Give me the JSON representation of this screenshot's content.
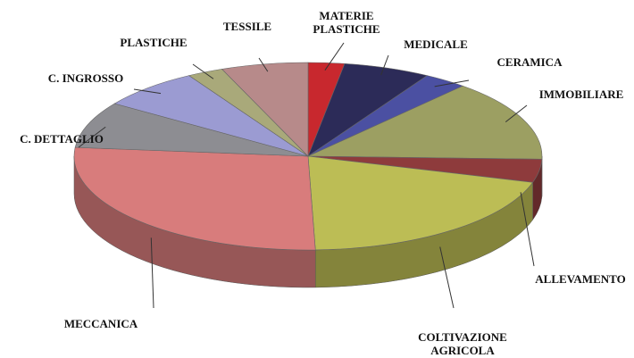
{
  "chart_data": {
    "type": "pie",
    "categories": [
      "MATERIE PLASTICHE",
      "MEDICALE",
      "CERAMICA",
      "IMMOBILIARE",
      "ALLEVAMENTO",
      "COLTIVAZIONE AGRICOLA",
      "MECCANICA",
      "C. DETTAGLIO",
      "C. INGROSSO",
      "PLASTICHE",
      "TESSILE"
    ],
    "values": [
      2.5,
      6,
      3,
      14,
      4,
      20,
      27,
      8,
      7,
      2.5,
      6
    ],
    "colors": [
      "#c8282e",
      "#2c2b58",
      "#4b50a2",
      "#9c9f62",
      "#8e3b3c",
      "#bcbd55",
      "#d87c7c",
      "#8d8d92",
      "#9b9bd2",
      "#a9a97a",
      "#b78a8a"
    ]
  }
}
